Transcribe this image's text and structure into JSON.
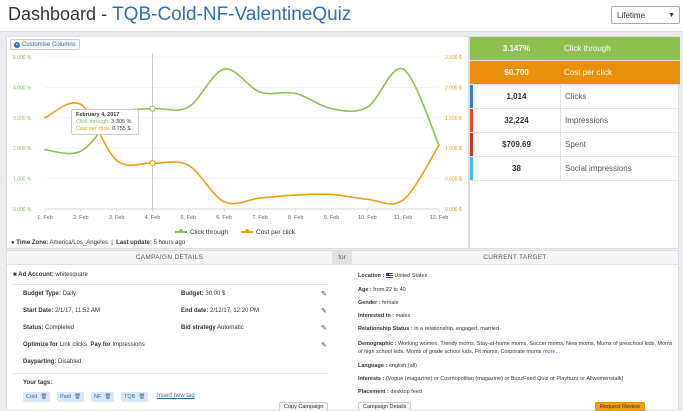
{
  "header": {
    "title": "Dashboard",
    "separator": "-",
    "campaign_name": "TQB-Cold-NF-ValentineQuiz",
    "period_selected": "Lifetime"
  },
  "chart": {
    "customise_label": "Customise Columns",
    "legend": [
      "Click through",
      "Cost per click"
    ],
    "timezone_label": "Time Zone:",
    "timezone_value": "America/Los_Angeles",
    "last_update_label": "Last update:",
    "last_update_value": "5 hours ago",
    "tooltip": {
      "date": "February 4, 2017",
      "ctr_label": "Click through:",
      "ctr_value": "3.305 %",
      "cpc_label": "Cost per click:",
      "cpc_value": "0.755 $"
    }
  },
  "chart_data": {
    "type": "line",
    "x": [
      "1. Feb",
      "2. Feb",
      "3. Feb",
      "4. Feb",
      "5. Feb",
      "6. Feb",
      "7. Feb",
      "8. Feb",
      "9. Feb",
      "10. Feb",
      "11. Feb",
      "12. Feb"
    ],
    "series": [
      {
        "name": "Click through",
        "axis": "left",
        "color": "#8cc152",
        "values": [
          1.95,
          1.9,
          3.1,
          3.305,
          3.35,
          4.6,
          3.85,
          3.8,
          3.3,
          3.35,
          4.6,
          2.1
        ]
      },
      {
        "name": "Cost per click",
        "axis": "right",
        "color": "#f39c12",
        "values": [
          1.5,
          1.72,
          0.8,
          0.755,
          0.72,
          0.12,
          0.18,
          0.23,
          0.24,
          0.16,
          0.15,
          1.05
        ]
      }
    ],
    "y_left_ticks": [
      "0.000 %",
      "1.000 %",
      "2.000 %",
      "3.000 %",
      "4.000 %",
      "5.000 %"
    ],
    "y_left_range": [
      0,
      5
    ],
    "y_right_ticks": [
      "0.000 $",
      "0.500 $",
      "1.000 $",
      "1.500 $",
      "2.000 $",
      "2.500 $"
    ],
    "y_right_range": [
      0,
      2.5
    ],
    "legend_position": "bottom-center"
  },
  "kpis": [
    {
      "value": "3.147%",
      "label": "Click through",
      "color": "#8cc152",
      "filled": true
    },
    {
      "value": "$0.700",
      "label": "Cost per click",
      "color": "#e8900c",
      "filled": true
    },
    {
      "value": "1,014",
      "label": "Clicks",
      "color": "#2f80d5",
      "filled": false
    },
    {
      "value": "32,224",
      "label": "Impressions",
      "color": "#e0501f",
      "filled": false
    },
    {
      "value": "$709.69",
      "label": "Spent",
      "color": "#c0392b",
      "filled": false
    },
    {
      "value": "38",
      "label": "Social impressions",
      "color": "#3cc5e8",
      "filled": false
    }
  ],
  "campaign_details": {
    "heading": "CAMPAIGN DETAILS",
    "for_label": "for",
    "ad_account_label": "Ad Account:",
    "ad_account_value": "whitesquare",
    "budget_type_label": "Budget Type:",
    "budget_type_value": "Daily",
    "budget_label": "Budget:",
    "budget_value": "30.00 $",
    "start_date_label": "Start Date:",
    "start_date_value": "2/1/17, 11:52 AM",
    "end_date_label": "End date:",
    "end_date_value": "2/12/17, 12:20 PM",
    "status_label": "Status:",
    "status_value": "Completed",
    "bid_strategy_label": "Bid strategy",
    "bid_strategy_value": "Automatic",
    "optimize_label": "Optimize for",
    "optimize_value": "Link clicks",
    "pay_label": "Pay for",
    "pay_value": "Impressions",
    "dayparting_label": "Dayparting:",
    "dayparting_value": "Disabled",
    "tags_label": "Your tags:",
    "tags": [
      "Cold",
      "Paid",
      "NF",
      "TQB"
    ],
    "insert_tag": "Insert new tag",
    "copy_button": "Copy Campaign"
  },
  "current_target": {
    "heading": "CURRENT TARGET",
    "location_label": "Location :",
    "location_value": "United States",
    "age_label": "Age :",
    "age_value": "from 22 to 40",
    "gender_label": "Gender :",
    "gender_value": "female",
    "interested_label": "Interested in :",
    "interested_value": "males",
    "relationship_label": "Relationship Status :",
    "relationship_value": "in a relationship, engaged, married",
    "demographic_label": "Demographic :",
    "demographic_value": "Working women, Trendy moms, Stay-at-home moms, Soccer moms, New moms, Moms of preschool kids, Moms of high school kids, Moms of grade school kids, Fit moms, Corporate moms",
    "demographic_more": "more...",
    "language_label": "Language :",
    "language_value": "english (all)",
    "interests_label": "Interests :",
    "interests_value": "(Vogue (magazine) or Cosmopolitan (magazine) or BuzzFeed Quiz or Playbuzz or Allwomenstalk)",
    "placement_label": "Placement :",
    "placement_value": "desktop feed",
    "campaign_details_button": "Campaign Details",
    "request_review_button": "Request Review"
  }
}
